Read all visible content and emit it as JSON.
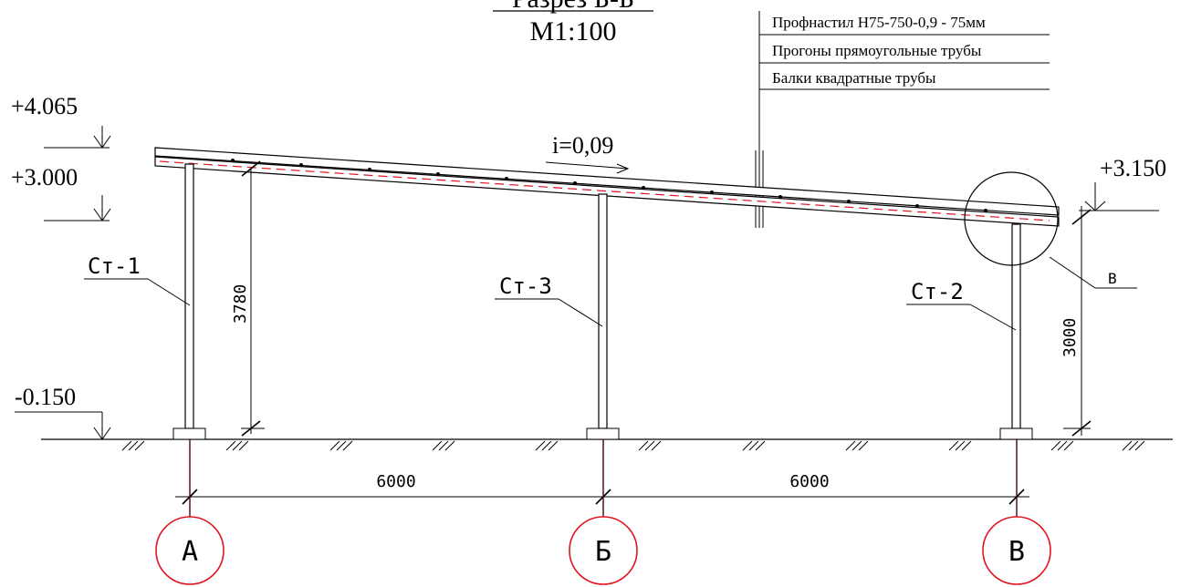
{
  "title": {
    "section_partial": "Разрез Б-Б",
    "scale": "М1:100"
  },
  "callout": {
    "lines": [
      "Профнастил Н75-750-0,9 - 75мм",
      "Прогоны прямоугольные трубы",
      "Балки квадратные трубы"
    ]
  },
  "levels": {
    "top_left_high": "+4.065",
    "top_left": "+3.000",
    "ground": "-0.150",
    "right": "+3.150"
  },
  "slope": "i=0,09",
  "columns": {
    "left": "Ст-1",
    "middle": "Ст-3",
    "right": "Ст-2"
  },
  "detail_ref": "В",
  "dimensions": {
    "left_height": "3780",
    "right_height": "3000",
    "span_1": "6000",
    "span_2": "6000"
  },
  "axes": [
    "А",
    "Б",
    "В"
  ],
  "colors": {
    "line": "#000000",
    "axis": "#e0141e",
    "roof_dash": "#e0141e"
  }
}
